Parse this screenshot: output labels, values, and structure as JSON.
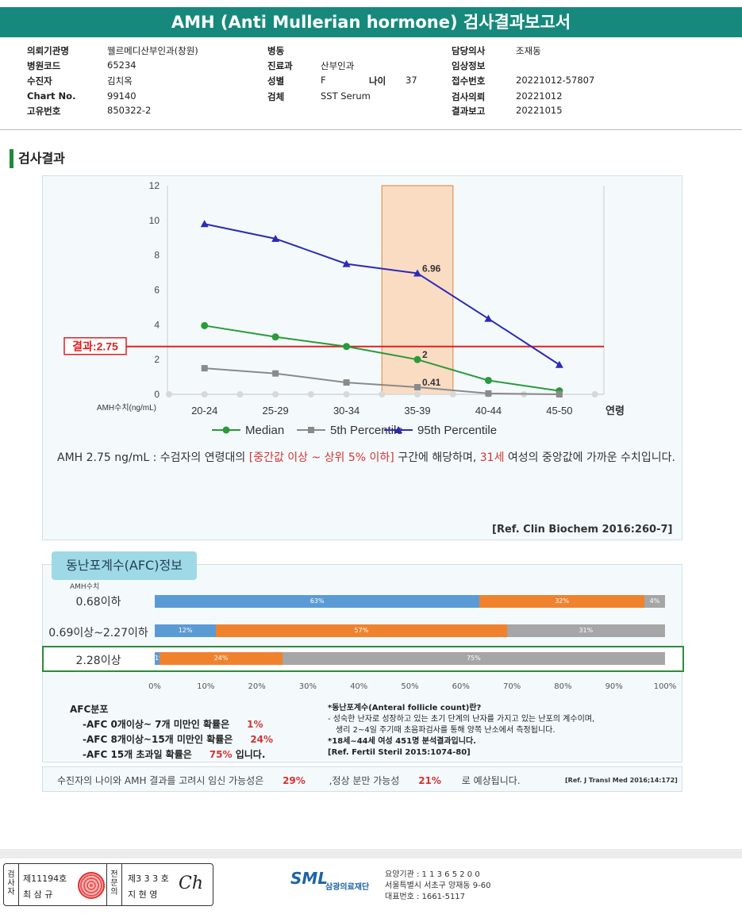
{
  "title": "AMH (Anti Mullerian hormone) 검사결과보고서",
  "info": {
    "col1": [
      {
        "label": "의뢰기관명",
        "value": "웰르메디산부인과(창원)"
      },
      {
        "label": "병원코드",
        "value": "65234"
      },
      {
        "label": "수진자",
        "value": "김치옥"
      },
      {
        "label": "Chart No.",
        "value": "99140"
      },
      {
        "label": "고유번호",
        "value": "850322-2"
      }
    ],
    "col2": [
      {
        "label": "병동",
        "value": ""
      },
      {
        "label": "진료과",
        "value": "산부인과"
      },
      {
        "label": "성별",
        "value": "F"
      },
      {
        "label": "검체",
        "value": "SST Serum"
      }
    ],
    "age_label": "나이",
    "age_value": "37",
    "col3": [
      {
        "label": "담당의사",
        "value": "조재동"
      },
      {
        "label": "임상정보",
        "value": ""
      },
      {
        "label": "접수번호",
        "value": "20221012-57807"
      },
      {
        "label": "검사의뢰",
        "value": "20221012"
      },
      {
        "label": "결과보고",
        "value": "20221015"
      }
    ]
  },
  "section_title": "검사결과",
  "chart_data": {
    "type": "line",
    "categories": [
      "20-24",
      "25-29",
      "30-34",
      "35-39",
      "40-44",
      "45-50"
    ],
    "xlabel": "연령",
    "ylabel": "AMH수치(ng/mL)",
    "ylim": [
      0,
      12
    ],
    "yticks": [
      0,
      2,
      4,
      6,
      8,
      10,
      12
    ],
    "highlight_category": "35-39",
    "result_line": {
      "value": 2.75,
      "label": "결과:2.75",
      "color": "#e02020"
    },
    "series": [
      {
        "name": "Median",
        "values": [
          3.95,
          3.3,
          2.75,
          2.0,
          0.8,
          0.2
        ],
        "color": "#2a9a3a",
        "marker": "circle"
      },
      {
        "name": "5th Percentile",
        "values": [
          1.5,
          1.2,
          0.68,
          0.41,
          0.05,
          0.0
        ],
        "color": "#8a8a8a",
        "marker": "square"
      },
      {
        "name": "95th Percentile",
        "values": [
          9.8,
          8.95,
          7.5,
          6.96,
          4.35,
          1.7
        ],
        "color": "#2a2ab8",
        "marker": "triangle"
      }
    ],
    "data_labels": [
      {
        "series": 2,
        "index": 3,
        "text": "6.96"
      },
      {
        "series": 0,
        "index": 3,
        "text": "2"
      },
      {
        "series": 1,
        "index": 3,
        "text": "0.41"
      }
    ],
    "grid": false,
    "legend": "bottom"
  },
  "description": {
    "p1": "AMH  2.75 ng/mL : 수검자의 연령대의 ",
    "red1": "[중간값 이상 ~ 상위 5% 이하]",
    "p2": " 구간에 해당하며, ",
    "red2": "31세",
    "p3": " 여성의 중앙값에 가까운 수치입니다."
  },
  "reference1": "[Ref. Clin Biochem 2016:260-7]",
  "afc": {
    "tab_title": "동난포계수(AFC)정보",
    "unit_label": "AMH수치",
    "rows": [
      {
        "label": "0.68이하",
        "segments": [
          63,
          32,
          4
        ],
        "labels": [
          "63%",
          "32%",
          "4%"
        ]
      },
      {
        "label": "0.69이상~2.27이하",
        "segments": [
          12,
          57,
          31
        ],
        "labels": [
          "12%",
          "57%",
          "31%"
        ]
      },
      {
        "label": "2.28이상",
        "segments": [
          1,
          24,
          75
        ],
        "labels": [
          "1%",
          "24%",
          "75%"
        ]
      }
    ],
    "colors": [
      "#5b9bd5",
      "#f0822e",
      "#a6a6a6"
    ],
    "ticks": [
      "0%",
      "10%",
      "20%",
      "30%",
      "40%",
      "50%",
      "60%",
      "70%",
      "80%",
      "90%",
      "100%"
    ],
    "dist_title": "AFC분포",
    "dist": [
      {
        "text": "-AFC  0개이상~ 7개 미만인 확률은",
        "pct": "1%",
        "tail": ""
      },
      {
        "text": "-AFC  8개이상~15개 미만인 확률은",
        "pct": "24%",
        "tail": ""
      },
      {
        "text": "-AFC  15개 초과일 확률은",
        "pct": "75%",
        "tail": " 입니다."
      }
    ],
    "note_title": "*동난포계수(Anteral follicle count)란?",
    "note_line1": "- 성숙한 난자로 성장하고 있는 초기 단계의 난자를 가지고 있는 난포의 계수이며,",
    "note_line2": "  생리 2~4일 주기때 초음파검사를 통해 양쪽 난소에서 측정됩니다.",
    "note_line3": "*18세~44세 여성 451명 분석결과입니다.",
    "note_ref": "[Ref. Fertil Steril 2015:1074-80]"
  },
  "pregnancy": {
    "t1": "수진자의  나이와 AMH 결과를 고려시 임신 가능성은",
    "v1": "29%",
    "t2": ",정상 분만 가능성",
    "v2": "21%",
    "t3": "로 예상됩니다.",
    "ref": "[Ref. J Transl Med 2016;14:172]"
  },
  "signature": {
    "role1_chars": [
      "검",
      "사",
      "자"
    ],
    "lic1": "제11194호",
    "name1": "최 삼 규",
    "role2_chars": [
      "전",
      "문",
      "의"
    ],
    "lic2": "제3 3 3 호",
    "name2": "지 현 영",
    "signature_scribble": "Ch"
  },
  "lab": {
    "logo": "SML",
    "name": "삼광의료재단",
    "line1": "요양기관 : 1 1 3 6 5 2 0 0",
    "line2": "서울특별시 서초구 양재동 9-60",
    "line3": "대표번호 : 1661-5117"
  }
}
